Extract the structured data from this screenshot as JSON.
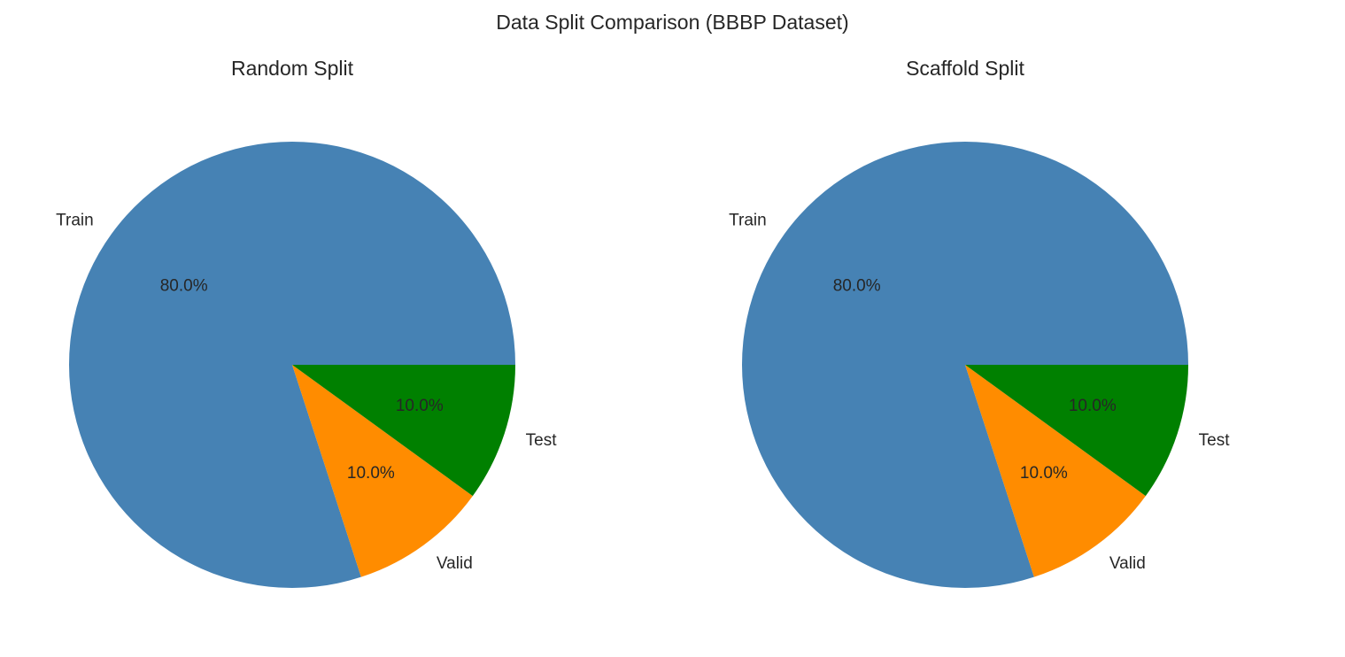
{
  "figure": {
    "title": "Data Split Comparison (BBBP Dataset)"
  },
  "colors": {
    "Train": "#4682b4",
    "Valid": "#ff8c00",
    "Test": "#008000"
  },
  "chart_data": [
    {
      "type": "pie",
      "title": "Random Split",
      "labels": [
        "Train",
        "Valid",
        "Test"
      ],
      "values": [
        80.0,
        10.0,
        10.0
      ],
      "autopct": [
        "80.0%",
        "10.0%",
        "10.0%"
      ],
      "colors": [
        "#4682b4",
        "#ff8c00",
        "#008000"
      ],
      "start_angle_deg": 0,
      "direction": "counterclockwise"
    },
    {
      "type": "pie",
      "title": "Scaffold Split",
      "labels": [
        "Train",
        "Valid",
        "Test"
      ],
      "values": [
        80.0,
        10.0,
        10.0
      ],
      "autopct": [
        "80.0%",
        "10.0%",
        "10.0%"
      ],
      "colors": [
        "#4682b4",
        "#ff8c00",
        "#008000"
      ],
      "start_angle_deg": 0,
      "direction": "counterclockwise"
    }
  ]
}
